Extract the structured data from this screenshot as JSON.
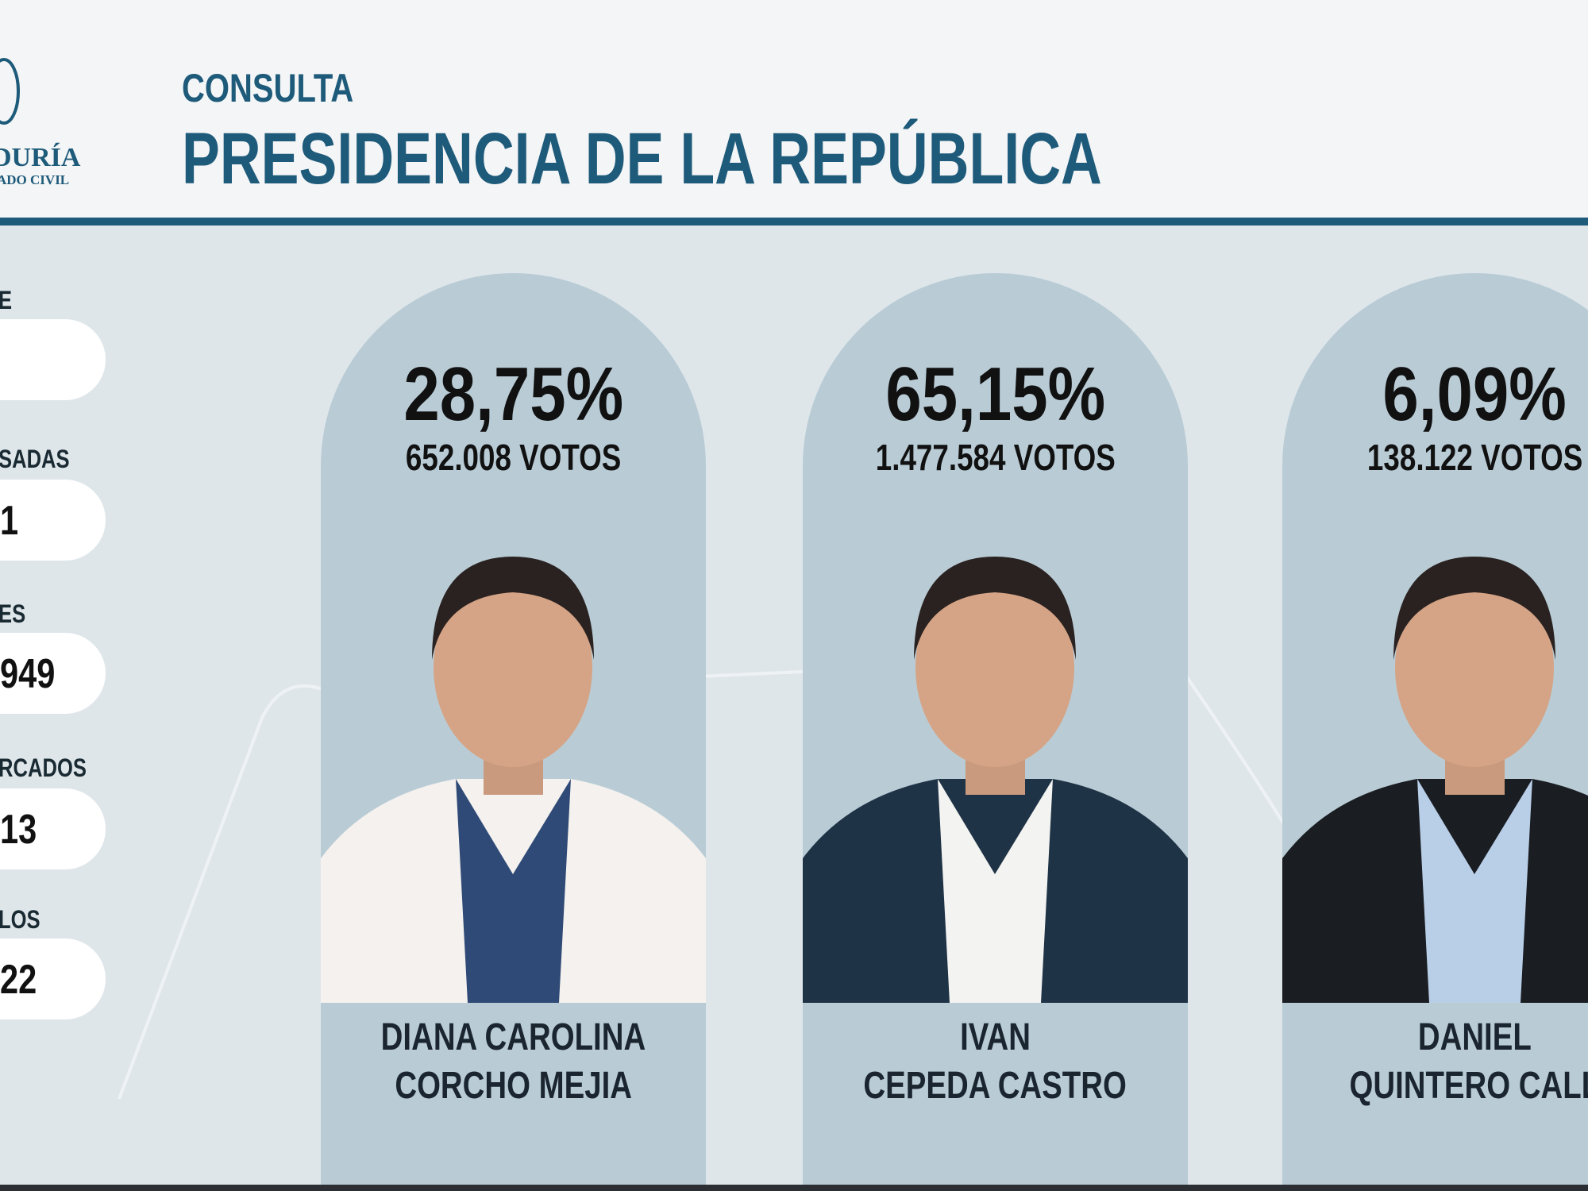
{
  "logo": {
    "lines": [
      "DURÍA",
      "ADO CIVIL"
    ]
  },
  "header": {
    "kicker": "CONSULTA",
    "title": "PRESIDENCIA DE LA REPÚBLICA"
  },
  "sidebar": [
    {
      "label": "E"
    },
    {
      "label": "SADAS",
      "value": "1"
    },
    {
      "label": "ES",
      "value": "949"
    },
    {
      "label": "RCADOS",
      "value": "13"
    },
    {
      "label": "LOS",
      "value": "22"
    }
  ],
  "candidates": [
    {
      "percent": "28,75%",
      "votes": "652.008 VOTOS",
      "name": [
        "DIANA CAROLINA",
        "CORCHO MEJIA"
      ]
    },
    {
      "percent": "65,15%",
      "votes": "1.477.584 VOTOS",
      "name": [
        "IVAN",
        "CEPEDA CASTRO"
      ]
    },
    {
      "percent": "6,09%",
      "votes": "138.122 VOTOS",
      "name": [
        "DANIEL",
        "QUINTERO CALL"
      ]
    }
  ]
}
